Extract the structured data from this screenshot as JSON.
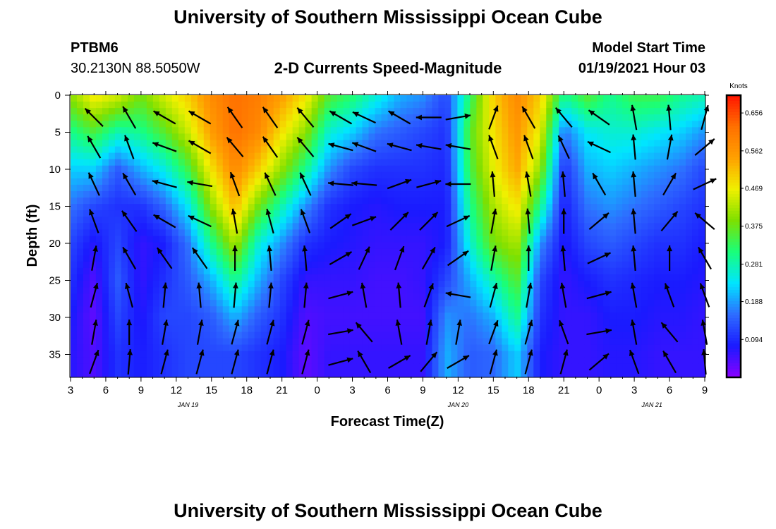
{
  "page": {
    "title_top": "University of Southern Mississippi Ocean Cube",
    "title_bottom": "University of Southern Mississippi Ocean Cube",
    "station_id": "PTBM6",
    "coordinates": "30.2130N 88.5050W",
    "model_start_label": "Model Start Time",
    "model_start_value": "01/19/2021 Hour 03",
    "colorbar_units": "Knots"
  },
  "chart_data": {
    "type": "heatmap",
    "title": "2-D Currents Speed-Magnitude",
    "xlabel": "Forecast Time(Z)",
    "ylabel": "Depth (ft)",
    "x_tick_labels": [
      "3",
      "6",
      "9",
      "12",
      "15",
      "18",
      "21",
      "0",
      "3",
      "6",
      "9",
      "12",
      "15",
      "18",
      "21",
      "0",
      "3",
      "6",
      "9"
    ],
    "x_range_hours_from_start": [
      0,
      54
    ],
    "date_labels": [
      {
        "text": "JAN 19",
        "hour": 10
      },
      {
        "text": "JAN 20",
        "hour": 33
      },
      {
        "text": "JAN 21",
        "hour": 49.5
      }
    ],
    "y_tick_labels": [
      "0",
      "5",
      "10",
      "15",
      "20",
      "25",
      "30",
      "35"
    ],
    "y_ticks": [
      0,
      5,
      10,
      15,
      20,
      25,
      30,
      35
    ],
    "y_range": [
      0,
      38
    ],
    "y_inverted": true,
    "colorbar": {
      "min": 0,
      "max": 0.7,
      "labels": [
        "0.656",
        "0.562",
        "0.469",
        "0.375",
        "0.281",
        "0.188",
        "0.094"
      ],
      "label_values": [
        0.656,
        0.562,
        0.469,
        0.375,
        0.281,
        0.188,
        0.094
      ],
      "colormap": [
        "#8a00ff",
        "#1a1aff",
        "#2e6cff",
        "#00e5ff",
        "#19ff7a",
        "#7ee000",
        "#f0f000",
        "#ffa000",
        "#ff7000",
        "#ff1400"
      ]
    },
    "speed_profiles": [
      {
        "hour": 0,
        "values": [
          0.4,
          0.3,
          0.22,
          0.16,
          0.12,
          0.1,
          0.08,
          0.07
        ]
      },
      {
        "hour": 2,
        "values": [
          0.48,
          0.35,
          0.22,
          0.12,
          0.07,
          0.04,
          0.03,
          0.04
        ]
      },
      {
        "hour": 4,
        "values": [
          0.45,
          0.28,
          0.14,
          0.1,
          0.12,
          0.14,
          0.12,
          0.1
        ]
      },
      {
        "hour": 6,
        "values": [
          0.38,
          0.3,
          0.2,
          0.1,
          0.06,
          0.06,
          0.07,
          0.08
        ]
      },
      {
        "hour": 8,
        "values": [
          0.45,
          0.36,
          0.25,
          0.15,
          0.08,
          0.1,
          0.12,
          0.1
        ]
      },
      {
        "hour": 10,
        "values": [
          0.5,
          0.44,
          0.34,
          0.24,
          0.16,
          0.14,
          0.12,
          0.12
        ]
      },
      {
        "hour": 12,
        "values": [
          0.58,
          0.55,
          0.48,
          0.4,
          0.3,
          0.2,
          0.14,
          0.12
        ]
      },
      {
        "hour": 14,
        "values": [
          0.62,
          0.62,
          0.58,
          0.52,
          0.42,
          0.3,
          0.2,
          0.12
        ]
      },
      {
        "hour": 16,
        "values": [
          0.6,
          0.58,
          0.5,
          0.38,
          0.26,
          0.2,
          0.14,
          0.1
        ]
      },
      {
        "hour": 18,
        "values": [
          0.55,
          0.48,
          0.4,
          0.28,
          0.18,
          0.12,
          0.1,
          0.08
        ]
      },
      {
        "hour": 20,
        "values": [
          0.48,
          0.4,
          0.3,
          0.18,
          0.1,
          0.06,
          0.04,
          0.03
        ]
      },
      {
        "hour": 22,
        "values": [
          0.36,
          0.26,
          0.18,
          0.1,
          0.08,
          0.06,
          0.05,
          0.06
        ]
      },
      {
        "hour": 24,
        "values": [
          0.32,
          0.22,
          0.12,
          0.08,
          0.07,
          0.06,
          0.05,
          0.06
        ]
      },
      {
        "hour": 26,
        "values": [
          0.26,
          0.16,
          0.1,
          0.07,
          0.06,
          0.05,
          0.05,
          0.06
        ]
      },
      {
        "hour": 28,
        "values": [
          0.2,
          0.14,
          0.1,
          0.08,
          0.06,
          0.05,
          0.05,
          0.06
        ]
      },
      {
        "hour": 30,
        "values": [
          0.18,
          0.12,
          0.1,
          0.08,
          0.06,
          0.06,
          0.05,
          0.06
        ]
      },
      {
        "hour": 32,
        "values": [
          0.12,
          0.1,
          0.09,
          0.08,
          0.08,
          0.12,
          0.18,
          0.2
        ]
      },
      {
        "hour": 34,
        "values": [
          0.32,
          0.36,
          0.34,
          0.3,
          0.26,
          0.2,
          0.16,
          0.14
        ]
      },
      {
        "hour": 36,
        "values": [
          0.5,
          0.48,
          0.46,
          0.42,
          0.38,
          0.28,
          0.2,
          0.15
        ]
      },
      {
        "hour": 38,
        "values": [
          0.58,
          0.56,
          0.54,
          0.48,
          0.42,
          0.36,
          0.3,
          0.22
        ]
      },
      {
        "hour": 40,
        "values": [
          0.5,
          0.46,
          0.4,
          0.3,
          0.18,
          0.12,
          0.1,
          0.08
        ]
      },
      {
        "hour": 42,
        "values": [
          0.3,
          0.16,
          0.1,
          0.08,
          0.07,
          0.06,
          0.06,
          0.06
        ]
      },
      {
        "hour": 44,
        "values": [
          0.36,
          0.24,
          0.2,
          0.16,
          0.12,
          0.08,
          0.06,
          0.06
        ]
      },
      {
        "hour": 46,
        "values": [
          0.3,
          0.26,
          0.22,
          0.18,
          0.14,
          0.1,
          0.08,
          0.07
        ]
      },
      {
        "hour": 48,
        "values": [
          0.34,
          0.26,
          0.2,
          0.16,
          0.12,
          0.09,
          0.08,
          0.07
        ]
      },
      {
        "hour": 50,
        "values": [
          0.34,
          0.24,
          0.18,
          0.14,
          0.1,
          0.08,
          0.07,
          0.06
        ]
      },
      {
        "hour": 52,
        "values": [
          0.3,
          0.22,
          0.16,
          0.12,
          0.1,
          0.08,
          0.07,
          0.06
        ]
      },
      {
        "hour": 54,
        "values": [
          0.28,
          0.18,
          0.12,
          0.1,
          0.08,
          0.07,
          0.06,
          0.06
        ]
      }
    ],
    "profile_depths": [
      0,
      5,
      10,
      15,
      20,
      25,
      30,
      35
    ],
    "vector_depths": [
      3,
      7,
      12,
      17,
      22,
      27,
      32,
      36
    ],
    "vectors": [
      {
        "hour": 2,
        "angles": [
          135,
          120,
          115,
          110,
          80,
          75,
          80,
          70
        ]
      },
      {
        "hour": 5,
        "angles": [
          120,
          110,
          120,
          125,
          120,
          105,
          90,
          85
        ]
      },
      {
        "hour": 8,
        "angles": [
          150,
          160,
          165,
          150,
          125,
          85,
          80,
          75
        ]
      },
      {
        "hour": 11,
        "angles": [
          150,
          150,
          170,
          155,
          125,
          95,
          80,
          75
        ]
      },
      {
        "hour": 14,
        "angles": [
          125,
          130,
          110,
          100,
          90,
          85,
          75,
          75
        ]
      },
      {
        "hour": 17,
        "angles": [
          125,
          125,
          115,
          105,
          95,
          85,
          75,
          75
        ]
      },
      {
        "hour": 20,
        "angles": [
          130,
          130,
          115,
          110,
          95,
          85,
          75,
          75
        ]
      },
      {
        "hour": 23,
        "angles": [
          150,
          165,
          175,
          35,
          30,
          15,
          10,
          15
        ]
      },
      {
        "hour": 25,
        "angles": [
          155,
          160,
          175,
          20,
          65,
          100,
          130,
          120
        ]
      },
      {
        "hour": 28,
        "angles": [
          150,
          165,
          20,
          45,
          70,
          95,
          100,
          30
        ]
      },
      {
        "hour": 30.5,
        "angles": [
          180,
          170,
          15,
          45,
          60,
          70,
          80,
          50
        ]
      },
      {
        "hour": 33,
        "angles": [
          10,
          170,
          180,
          25,
          35,
          170,
          80,
          30
        ]
      },
      {
        "hour": 36,
        "angles": [
          70,
          110,
          95,
          80,
          80,
          75,
          70,
          75
        ]
      },
      {
        "hour": 39,
        "angles": [
          120,
          110,
          100,
          95,
          90,
          80,
          75,
          75
        ]
      },
      {
        "hour": 42,
        "angles": [
          130,
          115,
          95,
          90,
          95,
          100,
          110,
          75
        ]
      },
      {
        "hour": 45,
        "angles": [
          145,
          155,
          120,
          40,
          25,
          15,
          10,
          40
        ]
      },
      {
        "hour": 48,
        "angles": [
          100,
          95,
          95,
          95,
          95,
          100,
          100,
          110
        ]
      },
      {
        "hour": 51,
        "angles": [
          95,
          80,
          60,
          50,
          90,
          110,
          130,
          120
        ]
      },
      {
        "hour": 54,
        "angles": [
          75,
          40,
          25,
          140,
          120,
          110,
          100,
          95
        ]
      }
    ]
  }
}
